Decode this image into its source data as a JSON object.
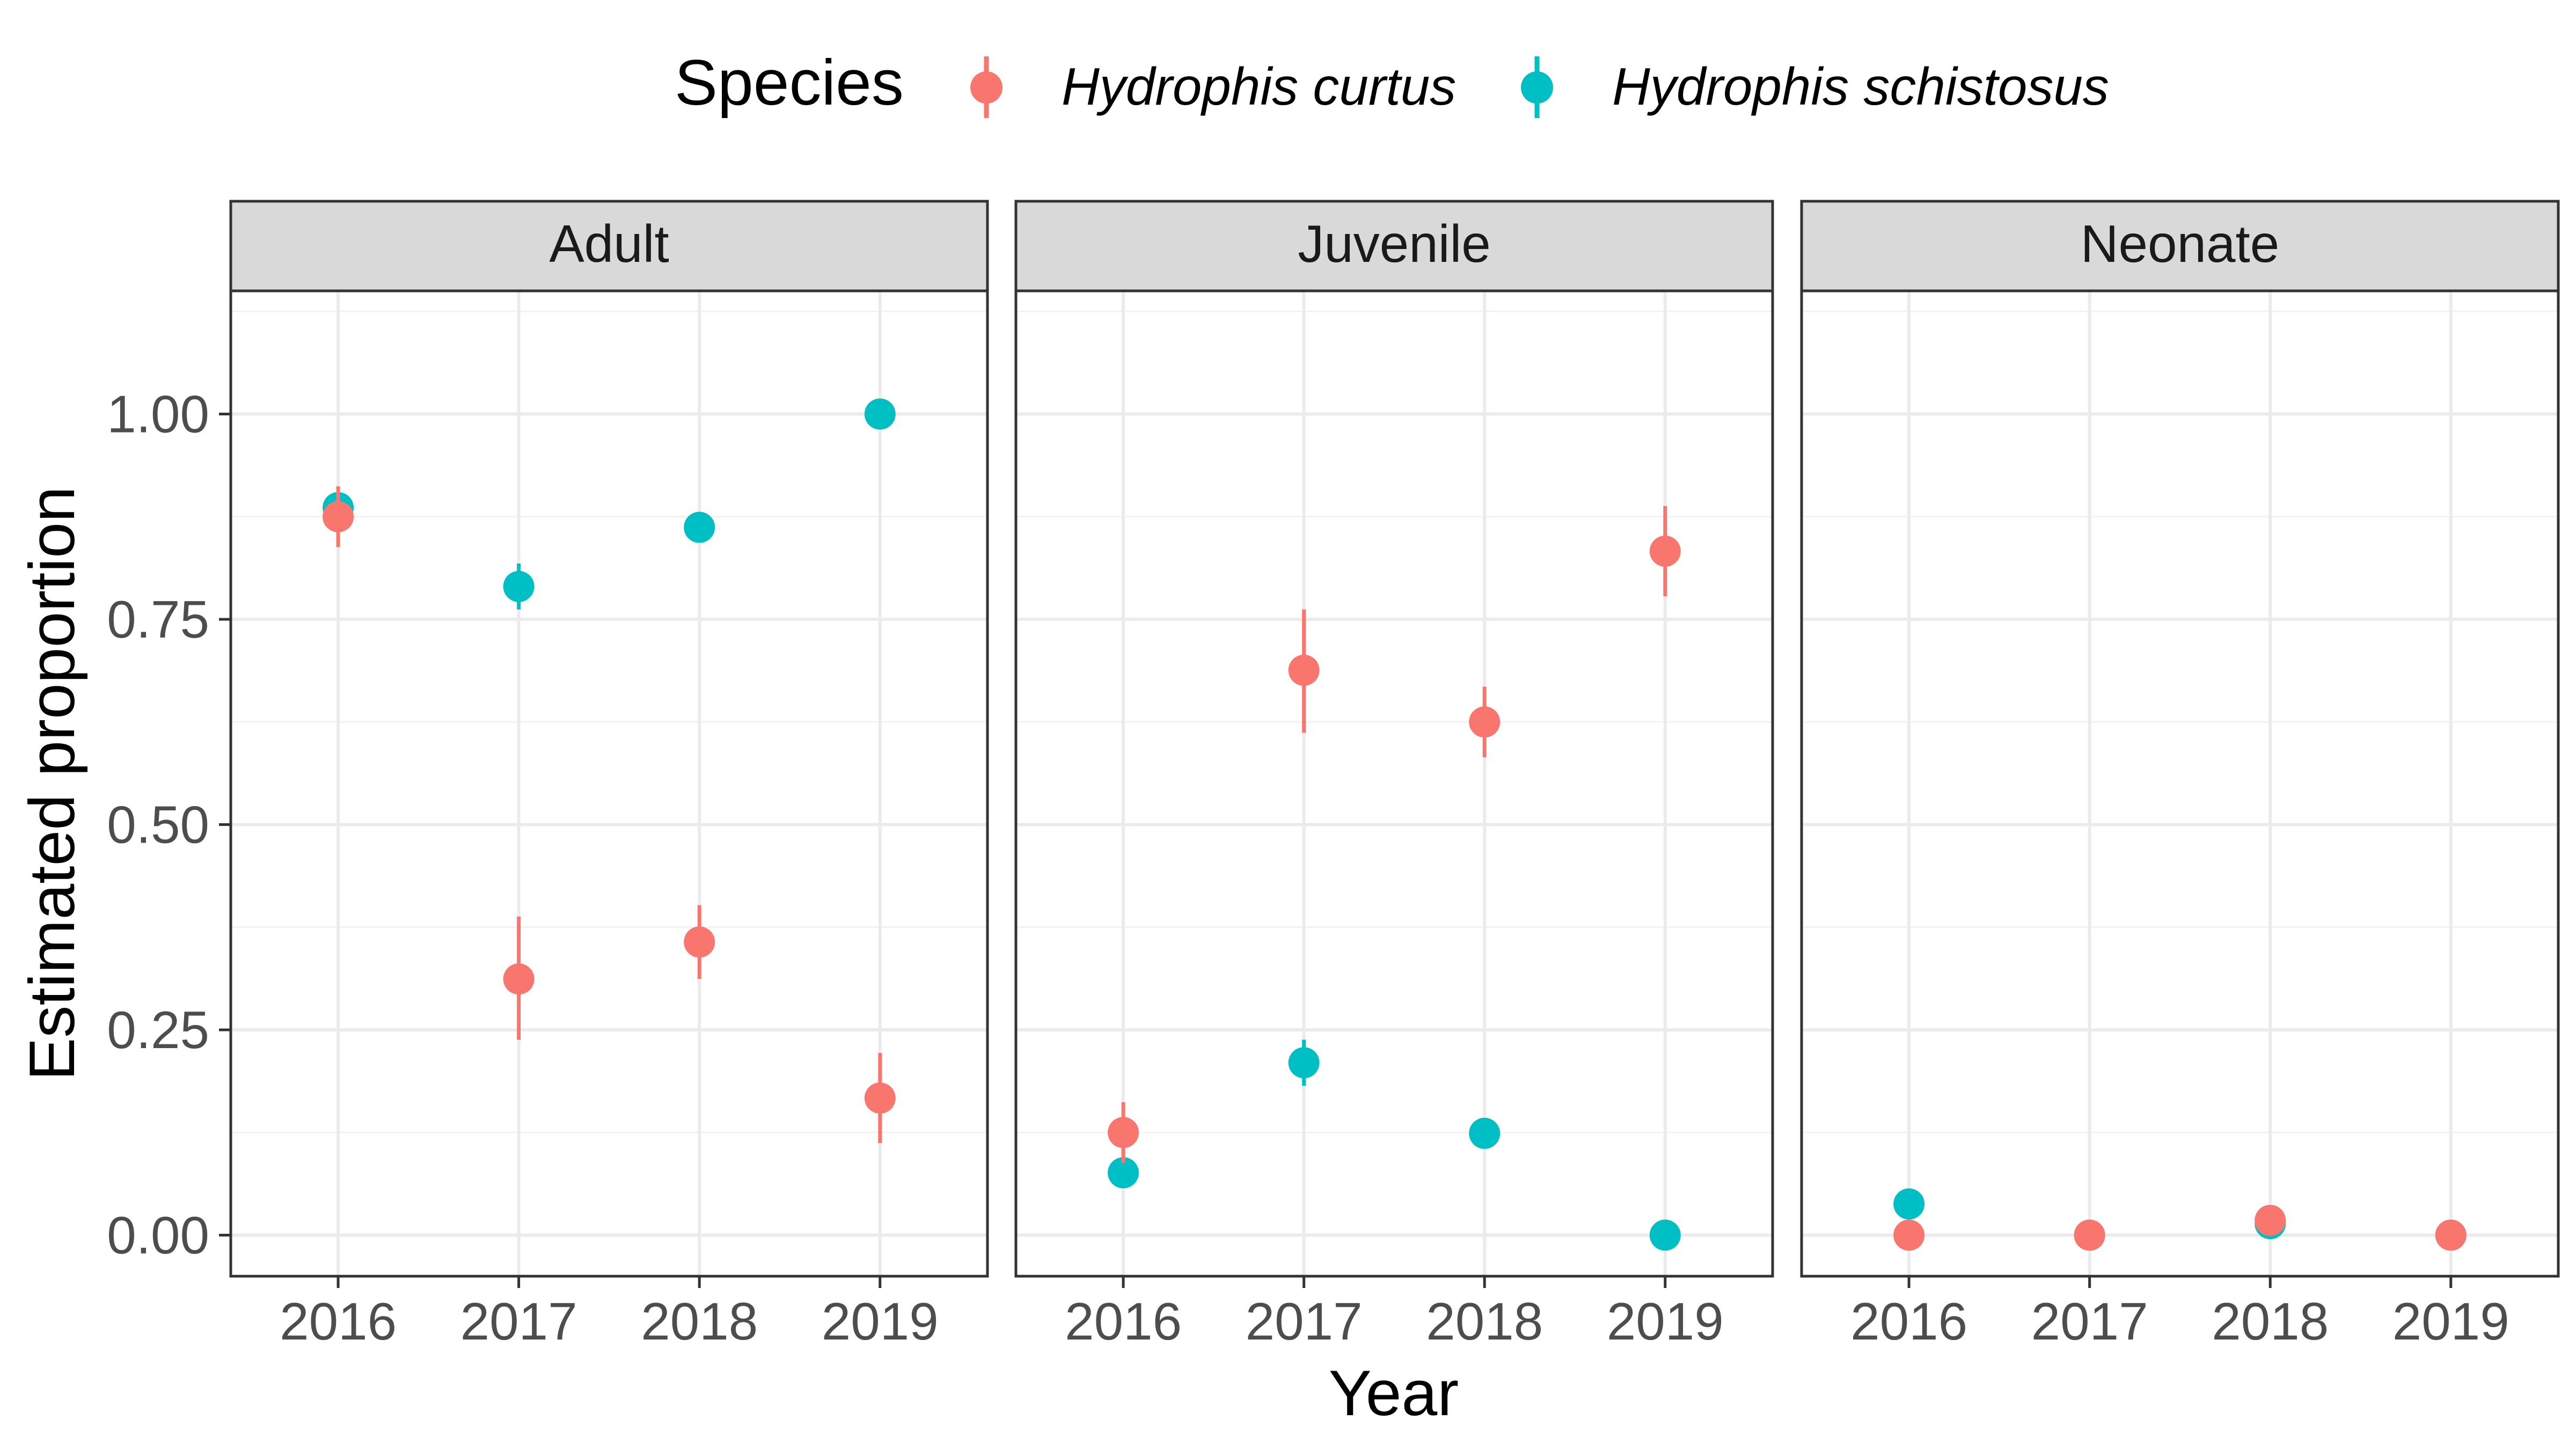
{
  "legend": {
    "title": "Species"
  },
  "chart_data": {
    "type": "scatter",
    "xlabel": "Year",
    "ylabel": "Estimated proportion",
    "x": [
      "2016",
      "2017",
      "2018",
      "2019"
    ],
    "ylim": [
      -0.05,
      1.15
    ],
    "yticks": [
      "0.00",
      "0.25",
      "0.50",
      "0.75",
      "1.00"
    ],
    "grid": true,
    "legend_position": "top",
    "facets": [
      "Adult",
      "Juvenile",
      "Neonate"
    ],
    "series": [
      {
        "name": "Hydrophis curtus",
        "color": "#f8766d",
        "values": {
          "Adult": [
            0.875,
            0.312,
            0.357,
            0.167
          ],
          "Juvenile": [
            0.125,
            0.688,
            0.625,
            0.833
          ],
          "Neonate": [
            0.0,
            0.0,
            0.018,
            0.0
          ]
        },
        "error_low": {
          "Adult": [
            0.838,
            0.238,
            0.312,
            0.112
          ],
          "Juvenile": [
            0.088,
            0.612,
            0.582,
            0.778
          ],
          "Neonate": [
            0.0,
            0.0,
            0.018,
            0.0
          ]
        },
        "error_high": {
          "Adult": [
            0.912,
            0.388,
            0.402,
            0.222
          ],
          "Juvenile": [
            0.162,
            0.762,
            0.668,
            0.888
          ],
          "Neonate": [
            0.0,
            0.0,
            0.018,
            0.0
          ]
        }
      },
      {
        "name": "Hydrophis schistosus",
        "color": "#00bfc4",
        "values": {
          "Adult": [
            0.886,
            0.79,
            0.862,
            1.0
          ],
          "Juvenile": [
            0.076,
            0.21,
            0.124,
            0.0
          ],
          "Neonate": [
            0.038,
            0.0,
            0.014,
            0.0
          ]
        },
        "error_low": {
          "Adult": [
            0.872,
            0.762,
            0.862,
            1.0
          ],
          "Juvenile": [
            0.062,
            0.182,
            0.124,
            0.0
          ],
          "Neonate": [
            0.038,
            0.0,
            0.014,
            0.0
          ]
        },
        "error_high": {
          "Adult": [
            0.9,
            0.818,
            0.862,
            1.0
          ],
          "Juvenile": [
            0.09,
            0.238,
            0.124,
            0.0
          ],
          "Neonate": [
            0.038,
            0.0,
            0.014,
            0.0
          ]
        }
      }
    ]
  }
}
